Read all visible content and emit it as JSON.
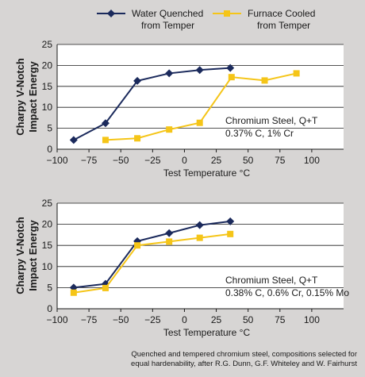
{
  "legend": {
    "items": [
      {
        "lines": [
          "Water Quenched",
          "from Temper"
        ],
        "color": "#1b2a5c",
        "marker": "diamond"
      },
      {
        "lines": [
          "Furnace Cooled",
          "from Temper"
        ],
        "color": "#f5c518",
        "marker": "square"
      }
    ]
  },
  "ylabel_lines": [
    "Charpy V-Notch",
    "Impact Energy"
  ],
  "caption_lines": [
    "Quenched and tempered chromium steel, compositions selected for",
    "equal hardenability, after R.G. Dunn, G.F. Whiteley and W. Fairhurst"
  ],
  "chart_data": [
    {
      "type": "line",
      "xlabel": "Test Temperature °C",
      "xlim": [
        -100,
        125
      ],
      "ylim": [
        0,
        25
      ],
      "x_ticks": [
        -100,
        -75,
        -50,
        -25,
        0,
        25,
        50,
        75,
        100
      ],
      "y_ticks": [
        0,
        5,
        10,
        15,
        20,
        25
      ],
      "grid": "horizontal",
      "annotation": [
        "Chromium Steel, Q+T",
        "0.37% C, 1% Cr"
      ],
      "series": [
        {
          "name": "Water Quenched from Temper",
          "color": "#1b2a5c",
          "marker": "diamond",
          "x": [
            -87,
            -62,
            -37,
            -12,
            12,
            36
          ],
          "y": [
            2.2,
            6.2,
            16.3,
            18.1,
            18.9,
            19.4
          ]
        },
        {
          "name": "Furnace Cooled from Temper",
          "color": "#f5c518",
          "marker": "square",
          "x": [
            -62,
            -37,
            -12,
            12,
            37,
            63,
            88
          ],
          "y": [
            2.2,
            2.6,
            4.7,
            6.3,
            17.2,
            16.4,
            18.1
          ]
        }
      ]
    },
    {
      "type": "line",
      "xlabel": "Test Temperature °C",
      "xlim": [
        -100,
        125
      ],
      "ylim": [
        0,
        25
      ],
      "x_ticks": [
        -100,
        -75,
        -50,
        -25,
        0,
        25,
        50,
        75,
        100
      ],
      "y_ticks": [
        0,
        5,
        10,
        15,
        20,
        25
      ],
      "grid": "horizontal",
      "annotation": [
        "Chromium Steel, Q+T",
        "0.38% C, 0.6% Cr, 0.15% Mo"
      ],
      "series": [
        {
          "name": "Water Quenched from Temper",
          "color": "#1b2a5c",
          "marker": "diamond",
          "x": [
            -87,
            -62,
            -37,
            -12,
            12,
            36
          ],
          "y": [
            5.0,
            5.9,
            16.0,
            17.9,
            19.8,
            20.7
          ]
        },
        {
          "name": "Furnace Cooled from Temper",
          "color": "#f5c518",
          "marker": "square",
          "x": [
            -87,
            -62,
            -37,
            -12,
            12,
            36
          ],
          "y": [
            3.8,
            4.9,
            15.0,
            15.9,
            16.8,
            17.7
          ]
        }
      ]
    }
  ]
}
